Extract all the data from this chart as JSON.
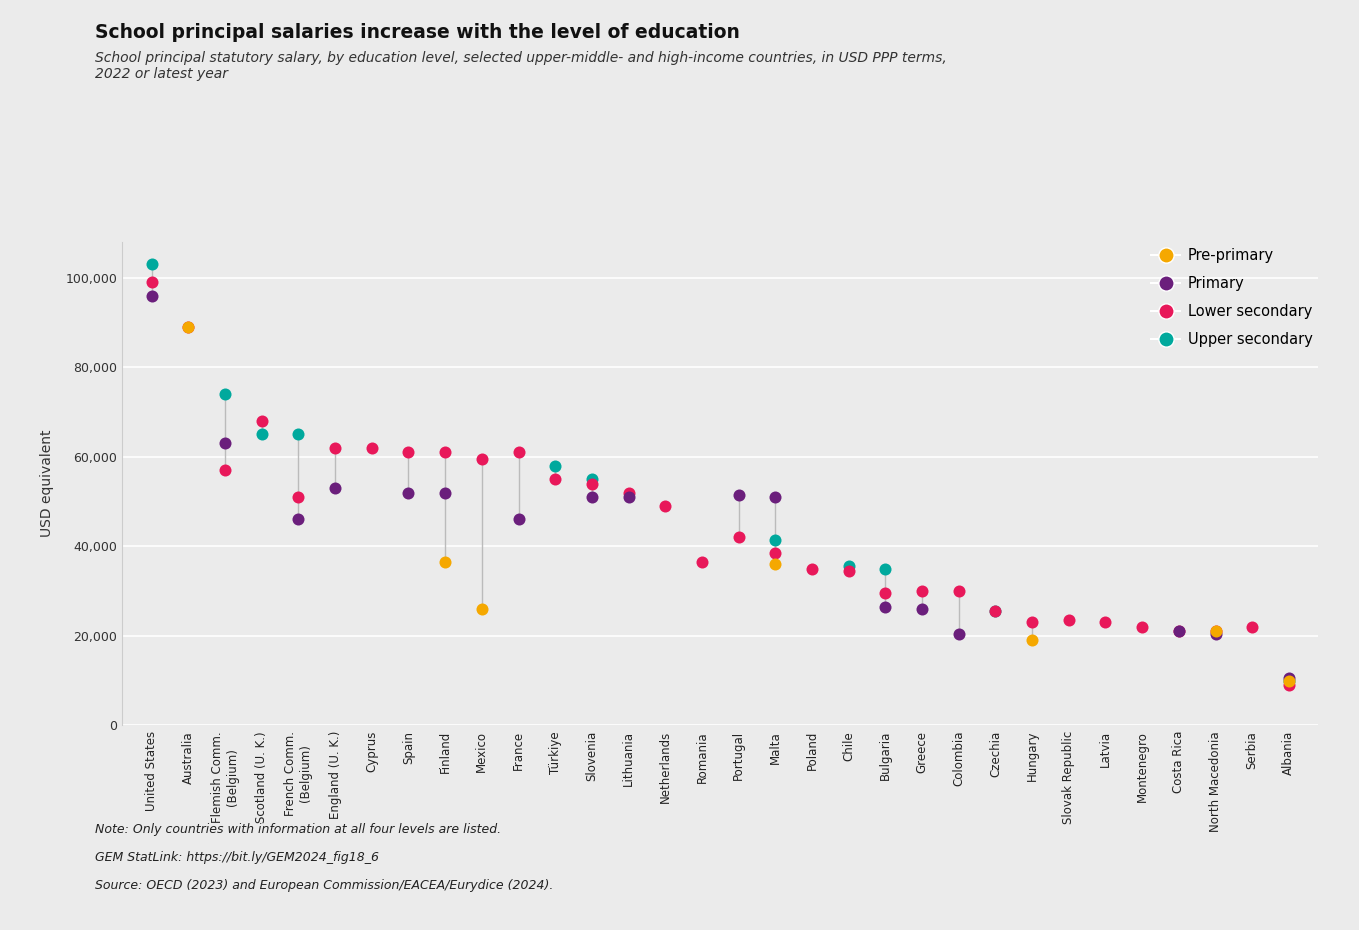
{
  "title": "School principal salaries increase with the level of education",
  "subtitle": "School principal statutory salary, by education level, selected upper-middle- and high-income countries, in USD PPP terms,\n2022 or latest year",
  "ylabel": "USD equivalent",
  "note": "Note: Only countries with information at all four levels are listed.",
  "statlink": "GEM StatLink: https://bit.ly/GEM2024_fig18_6",
  "source": "Source: OECD (2023) and European Commission/EACEA/Eurydice (2024).",
  "background_color": "#ebebeb",
  "colors": {
    "pre_primary": "#f5a800",
    "primary": "#6b1f7c",
    "lower_secondary": "#e8185a",
    "upper_secondary": "#00a99d"
  },
  "countries": [
    "United States",
    "Australia",
    "Flemish Comm.\n(Belgium)",
    "Scotland (U. K.)",
    "French Comm.\n(Belgium)",
    "England (U. K.)",
    "Cyprus",
    "Spain",
    "Finland",
    "Mexico",
    "France",
    "Türkiye",
    "Slovenia",
    "Lithuania",
    "Netherlands",
    "Romania",
    "Portugal",
    "Malta",
    "Poland",
    "Chile",
    "Bulgaria",
    "Greece",
    "Colombia",
    "Czechia",
    "Hungary",
    "Slovak Republic",
    "Latvia",
    "Montenegro",
    "Costa Rica",
    "North Macedonia",
    "Serbia",
    "Albania"
  ],
  "pre_primary": [
    null,
    89000,
    null,
    null,
    null,
    null,
    null,
    null,
    36500,
    26000,
    null,
    null,
    null,
    null,
    null,
    null,
    null,
    36000,
    null,
    null,
    null,
    null,
    null,
    null,
    19000,
    null,
    null,
    null,
    null,
    21000,
    null,
    10000
  ],
  "primary": [
    96000,
    null,
    63000,
    null,
    46000,
    53000,
    null,
    52000,
    52000,
    null,
    46000,
    null,
    51000,
    51000,
    null,
    null,
    51500,
    51000,
    null,
    null,
    26500,
    26000,
    20500,
    null,
    null,
    null,
    null,
    null,
    21000,
    20500,
    null,
    10500
  ],
  "lower_secondary": [
    99000,
    89000,
    57000,
    68000,
    51000,
    62000,
    62000,
    61000,
    61000,
    59500,
    61000,
    55000,
    54000,
    52000,
    49000,
    36500,
    42000,
    38500,
    35000,
    34500,
    29500,
    30000,
    30000,
    25500,
    23000,
    23500,
    23000,
    22000,
    21000,
    21000,
    22000,
    9000
  ],
  "upper_secondary": [
    103000,
    null,
    74000,
    65000,
    65000,
    null,
    null,
    null,
    null,
    null,
    null,
    58000,
    55000,
    null,
    null,
    null,
    null,
    41500,
    null,
    35500,
    35000,
    null,
    null,
    25500,
    null,
    null,
    null,
    null,
    null,
    null,
    null,
    10000
  ],
  "ylim": [
    0,
    108000
  ],
  "yticks": [
    0,
    20000,
    40000,
    60000,
    80000,
    100000
  ]
}
